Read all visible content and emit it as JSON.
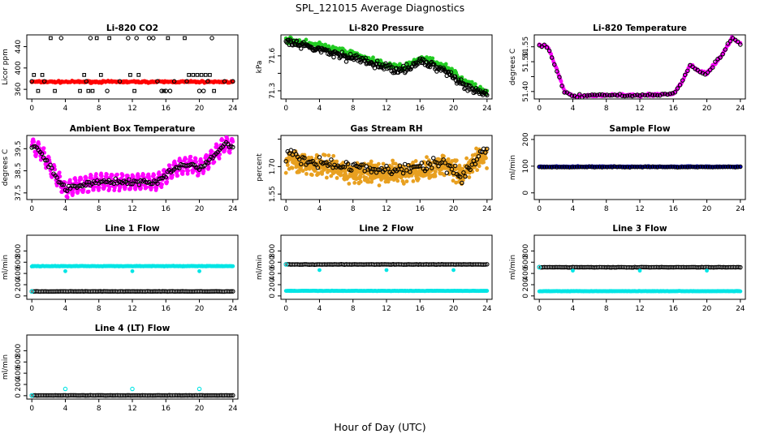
{
  "figure": {
    "title": "SPL_121015  Average Diagnostics",
    "xlabel": "Hour of Day (UTC)"
  },
  "chart_data": [
    {
      "type": "scatter",
      "title": "Li-820 CO2",
      "ylabel": "Licor ppm",
      "xlim": [
        -0.6,
        24.6
      ],
      "ylim": [
        342,
        462
      ],
      "xticks": [
        0,
        4,
        8,
        12,
        16,
        20,
        24
      ],
      "yticks": [
        360,
        400,
        440
      ],
      "series": [
        {
          "color": "#ff0000",
          "marker": "filled",
          "points": "band",
          "y": 374,
          "noise": 1.5
        },
        {
          "color": "#000000",
          "marker": "circle",
          "points": "levels",
          "levels": [
            357,
            375,
            456
          ]
        },
        {
          "color": "#000000",
          "marker": "square",
          "points": "levels",
          "levels": [
            357,
            387,
            456
          ]
        }
      ]
    },
    {
      "type": "scatter",
      "title": "Li-820 Pressure",
      "ylabel": "kPa",
      "xlim": [
        -0.6,
        24.6
      ],
      "ylim": [
        71.23,
        71.78
      ],
      "xticks": [
        0,
        4,
        8,
        12,
        16,
        20,
        24
      ],
      "yticks": [
        71.3,
        71.45,
        71.6
      ],
      "ytick_labels": [
        "71.3",
        "",
        "71.6"
      ],
      "series": [
        {
          "color": "#22cc22",
          "marker": "filled",
          "points": "curve",
          "knots": [
            [
              0,
              71.74
            ],
            [
              4,
              71.69
            ],
            [
              8,
              71.62
            ],
            [
              12,
              71.52
            ],
            [
              14,
              71.5
            ],
            [
              16,
              71.58
            ],
            [
              19,
              71.52
            ],
            [
              21,
              71.4
            ],
            [
              24,
              71.28
            ]
          ],
          "noise": 0.02
        },
        {
          "color": "#000000",
          "marker": "circle",
          "points": "curve",
          "knots": [
            [
              0,
              71.72
            ],
            [
              4,
              71.65
            ],
            [
              8,
              71.58
            ],
            [
              12,
              71.5
            ],
            [
              14,
              71.48
            ],
            [
              16,
              71.55
            ],
            [
              19,
              71.48
            ],
            [
              21,
              71.36
            ],
            [
              24,
              71.26
            ]
          ],
          "noise": 0.03
        }
      ]
    },
    {
      "type": "scatter",
      "title": "Li-820 Temperature",
      "ylabel": "degrees C",
      "xlim": [
        -0.6,
        24.6
      ],
      "ylim": [
        51.375,
        51.59
      ],
      "xticks": [
        0,
        4,
        8,
        12,
        16,
        20,
        24
      ],
      "yticks": [
        51.4,
        51.45,
        51.5,
        51.55
      ],
      "ytick_labels": [
        "51.40",
        "",
        "51.50",
        "51.55"
      ],
      "series": [
        {
          "color": "#ff00ff",
          "marker": "filled",
          "points": "curve",
          "knots": [
            [
              0,
              51.555
            ],
            [
              1,
              51.55
            ],
            [
              2,
              51.48
            ],
            [
              3,
              51.4
            ],
            [
              4,
              51.385
            ],
            [
              8,
              51.388
            ],
            [
              12,
              51.387
            ],
            [
              16,
              51.392
            ],
            [
              17,
              51.43
            ],
            [
              18,
              51.49
            ],
            [
              19,
              51.47
            ],
            [
              20,
              51.46
            ],
            [
              22,
              51.53
            ],
            [
              23,
              51.58
            ],
            [
              24,
              51.56
            ]
          ],
          "noise": 0.003
        },
        {
          "color": "#000000",
          "marker": "circle",
          "points": "curve",
          "knots": [
            [
              0,
              51.555
            ],
            [
              1,
              51.55
            ],
            [
              2,
              51.48
            ],
            [
              3,
              51.4
            ],
            [
              4,
              51.385
            ],
            [
              8,
              51.388
            ],
            [
              12,
              51.387
            ],
            [
              16,
              51.392
            ],
            [
              17,
              51.43
            ],
            [
              18,
              51.49
            ],
            [
              19,
              51.47
            ],
            [
              20,
              51.46
            ],
            [
              22,
              51.53
            ],
            [
              23,
              51.58
            ],
            [
              24,
              51.56
            ]
          ],
          "noise": 0.004,
          "every": 3
        }
      ]
    },
    {
      "type": "scatter",
      "title": "Ambient Box Temperature",
      "ylabel": "degrees C",
      "xlim": [
        -0.6,
        24.6
      ],
      "ylim": [
        37.2,
        40.1
      ],
      "xticks": [
        0,
        4,
        8,
        12,
        16,
        20,
        24
      ],
      "yticks": [
        37.5,
        38.5,
        39.5
      ],
      "series": [
        {
          "color": "#ff00ff",
          "marker": "filled",
          "points": "wave",
          "knots": [
            [
              0,
              39.6
            ],
            [
              1,
              39.4
            ],
            [
              3,
              38.2
            ],
            [
              4,
              37.6
            ],
            [
              5,
              37.8
            ],
            [
              8,
              38.0
            ],
            [
              12,
              38.0
            ],
            [
              15,
              38.0
            ],
            [
              17,
              38.6
            ],
            [
              19,
              38.8
            ],
            [
              20,
              38.6
            ],
            [
              22,
              39.3
            ],
            [
              23,
              39.7
            ],
            [
              24,
              39.6
            ]
          ],
          "amp": 0.35,
          "freq": 3.2
        },
        {
          "color": "#000000",
          "marker": "circle",
          "points": "curve",
          "knots": [
            [
              0,
              39.6
            ],
            [
              1,
              39.4
            ],
            [
              3,
              38.2
            ],
            [
              4,
              37.6
            ],
            [
              5,
              37.8
            ],
            [
              8,
              38.0
            ],
            [
              12,
              38.0
            ],
            [
              15,
              38.0
            ],
            [
              17,
              38.6
            ],
            [
              19,
              38.8
            ],
            [
              20,
              38.6
            ],
            [
              22,
              39.3
            ],
            [
              23,
              39.7
            ],
            [
              24,
              39.6
            ]
          ],
          "noise": 0.1,
          "every": 2
        }
      ]
    },
    {
      "type": "scatter",
      "title": "Gas Stream RH",
      "ylabel": "percent",
      "xlim": [
        -0.6,
        24.6
      ],
      "ylim": [
        1.52,
        1.87
      ],
      "xticks": [
        0,
        4,
        8,
        12,
        16,
        20,
        24
      ],
      "yticks": [
        1.55,
        1.7,
        1.85
      ],
      "ytick_labels": [
        "1.55",
        "1.70",
        ""
      ],
      "series": [
        {
          "color": "#e8a020",
          "marker": "filled",
          "points": "scatter",
          "knots": [
            [
              0,
              1.74
            ],
            [
              4,
              1.7
            ],
            [
              8,
              1.67
            ],
            [
              12,
              1.66
            ],
            [
              16,
              1.68
            ],
            [
              19,
              1.71
            ],
            [
              21,
              1.66
            ],
            [
              23,
              1.75
            ],
            [
              24,
              1.76
            ]
          ],
          "noise": 0.05
        },
        {
          "color": "#000000",
          "marker": "circle",
          "points": "curve",
          "knots": [
            [
              0,
              1.76
            ],
            [
              4,
              1.72
            ],
            [
              8,
              1.7
            ],
            [
              12,
              1.68
            ],
            [
              16,
              1.7
            ],
            [
              19,
              1.72
            ],
            [
              21,
              1.64
            ],
            [
              23,
              1.75
            ],
            [
              24,
              1.8
            ]
          ],
          "noise": 0.03,
          "every": 2
        }
      ]
    },
    {
      "type": "scatter",
      "title": "Sample Flow",
      "ylabel": "ml/min",
      "xlim": [
        -0.6,
        24.6
      ],
      "ylim": [
        -25,
        215
      ],
      "xticks": [
        0,
        4,
        8,
        12,
        16,
        20,
        24
      ],
      "yticks": [
        0,
        100,
        200
      ],
      "series": [
        {
          "color": "#0000cc",
          "marker": "filled",
          "points": "band",
          "y": 98,
          "noise": 1.5
        },
        {
          "color": "#000000",
          "marker": "circle",
          "points": "band",
          "y": 97,
          "noise": 1,
          "every": 3
        }
      ]
    },
    {
      "type": "scatter",
      "title": "Line 1 Flow",
      "ylabel": "ml/min",
      "xlim": [
        -0.6,
        24.6
      ],
      "ylim": [
        -60,
        1080
      ],
      "xticks": [
        0,
        4,
        8,
        12,
        16,
        20,
        24
      ],
      "yticks": [
        0,
        200,
        400,
        600,
        800
      ],
      "series": [
        {
          "color": "#00e5e5",
          "marker": "filled",
          "points": "band",
          "y": 530,
          "noise": 4,
          "spikes": [
            [
              4,
              440
            ],
            [
              12,
              440
            ],
            [
              20,
              440
            ]
          ]
        },
        {
          "color": "#000000",
          "marker": "circle",
          "points": "band",
          "y": 80,
          "noise": 2,
          "every": 2
        },
        {
          "color": "#00e5e5",
          "marker": "circle",
          "points": "single",
          "xy": [
            [
              0,
              80
            ]
          ]
        }
      ]
    },
    {
      "type": "scatter",
      "title": "Line 2 Flow",
      "ylabel": "ml/min",
      "xlim": [
        -0.6,
        24.6
      ],
      "ylim": [
        -60,
        1080
      ],
      "xticks": [
        0,
        4,
        8,
        12,
        16,
        20,
        24
      ],
      "yticks": [
        0,
        200,
        400,
        600,
        800
      ],
      "series": [
        {
          "color": "#000000",
          "marker": "circle",
          "points": "band",
          "y": 560,
          "noise": 3,
          "every": 2
        },
        {
          "color": "#00e5e5",
          "marker": "filled",
          "points": "band",
          "y": 90,
          "noise": 3,
          "spikes": [
            [
              4,
              460
            ],
            [
              12,
              460
            ],
            [
              20,
              460
            ]
          ]
        },
        {
          "color": "#00e5e5",
          "marker": "circle",
          "points": "single",
          "xy": [
            [
              0,
              560
            ]
          ]
        }
      ]
    },
    {
      "type": "scatter",
      "title": "Line 3 Flow",
      "ylabel": "ml/min",
      "xlim": [
        -0.6,
        24.6
      ],
      "ylim": [
        -60,
        1080
      ],
      "xticks": [
        0,
        4,
        8,
        12,
        16,
        20,
        24
      ],
      "yticks": [
        0,
        200,
        400,
        600,
        800
      ],
      "series": [
        {
          "color": "#000000",
          "marker": "circle",
          "points": "band",
          "y": 510,
          "noise": 3,
          "every": 2
        },
        {
          "color": "#00e5e5",
          "marker": "filled",
          "points": "band",
          "y": 85,
          "noise": 3,
          "spikes": [
            [
              4,
              450
            ],
            [
              12,
              450
            ],
            [
              20,
              450
            ]
          ]
        },
        {
          "color": "#00e5e5",
          "marker": "circle",
          "points": "single",
          "xy": [
            [
              0,
              510
            ]
          ]
        }
      ]
    },
    {
      "type": "scatter",
      "title": "Line 4 (LT) Flow",
      "ylabel": "ml/min",
      "xlim": [
        -0.6,
        24.6
      ],
      "ylim": [
        -60,
        1080
      ],
      "xticks": [
        0,
        4,
        8,
        12,
        16,
        20,
        24
      ],
      "yticks": [
        0,
        200,
        400,
        600,
        800
      ],
      "series": [
        {
          "color": "#000000",
          "marker": "circle",
          "points": "band",
          "y": 5,
          "noise": 2,
          "every": 2
        },
        {
          "color": "#00e5e5",
          "marker": "circle",
          "points": "single",
          "xy": [
            [
              0,
              5
            ],
            [
              4,
              120
            ],
            [
              12,
              120
            ],
            [
              20,
              120
            ]
          ]
        }
      ]
    }
  ]
}
